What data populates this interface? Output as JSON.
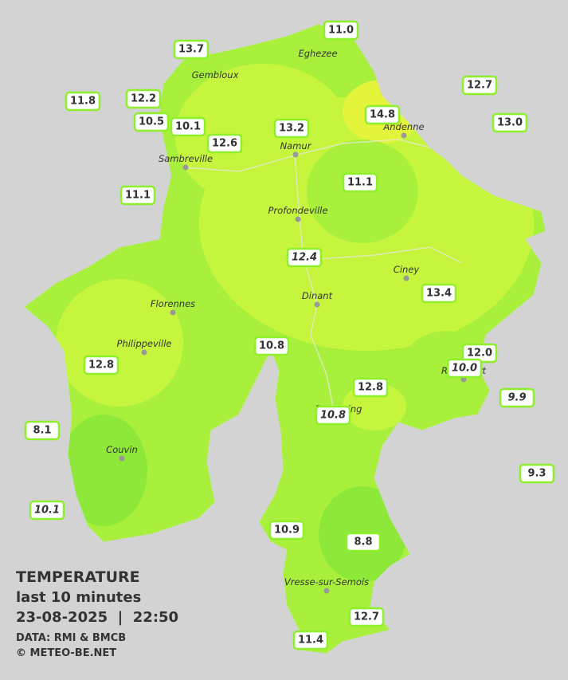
{
  "map": {
    "stations": [
      "11.0",
      "13.7",
      "12.7",
      "11.8",
      "12.2",
      "14.8",
      "13.0",
      "10.5",
      "10.1",
      "13.2",
      "12.6",
      "11.1",
      "11.1",
      "12.4",
      "13.4",
      "10.8",
      "12.0",
      "10.0",
      "12.8",
      "12.8",
      "9.9",
      "10.8",
      "8.1",
      "9.3",
      "10.1",
      "10.9",
      "8.8",
      "12.7",
      "11.4"
    ],
    "towns": [
      "Eghezee",
      "Gembloux",
      "Andenne",
      "Namur",
      "Sambreville",
      "Profondeville",
      "Ciney",
      "Dinant",
      "Florennes",
      "Philippeville",
      "Rochefort",
      "Beauraing",
      "Couvin",
      "Vresse-sur-Semois"
    ]
  },
  "legend": {
    "title": "TEMPERATURE",
    "subtitle": "last 10 minutes",
    "datetime": "23-08-2025  |  22:50",
    "source": "DATA: RMI & BMCB",
    "copyright": "© METEO-BE.NET"
  }
}
